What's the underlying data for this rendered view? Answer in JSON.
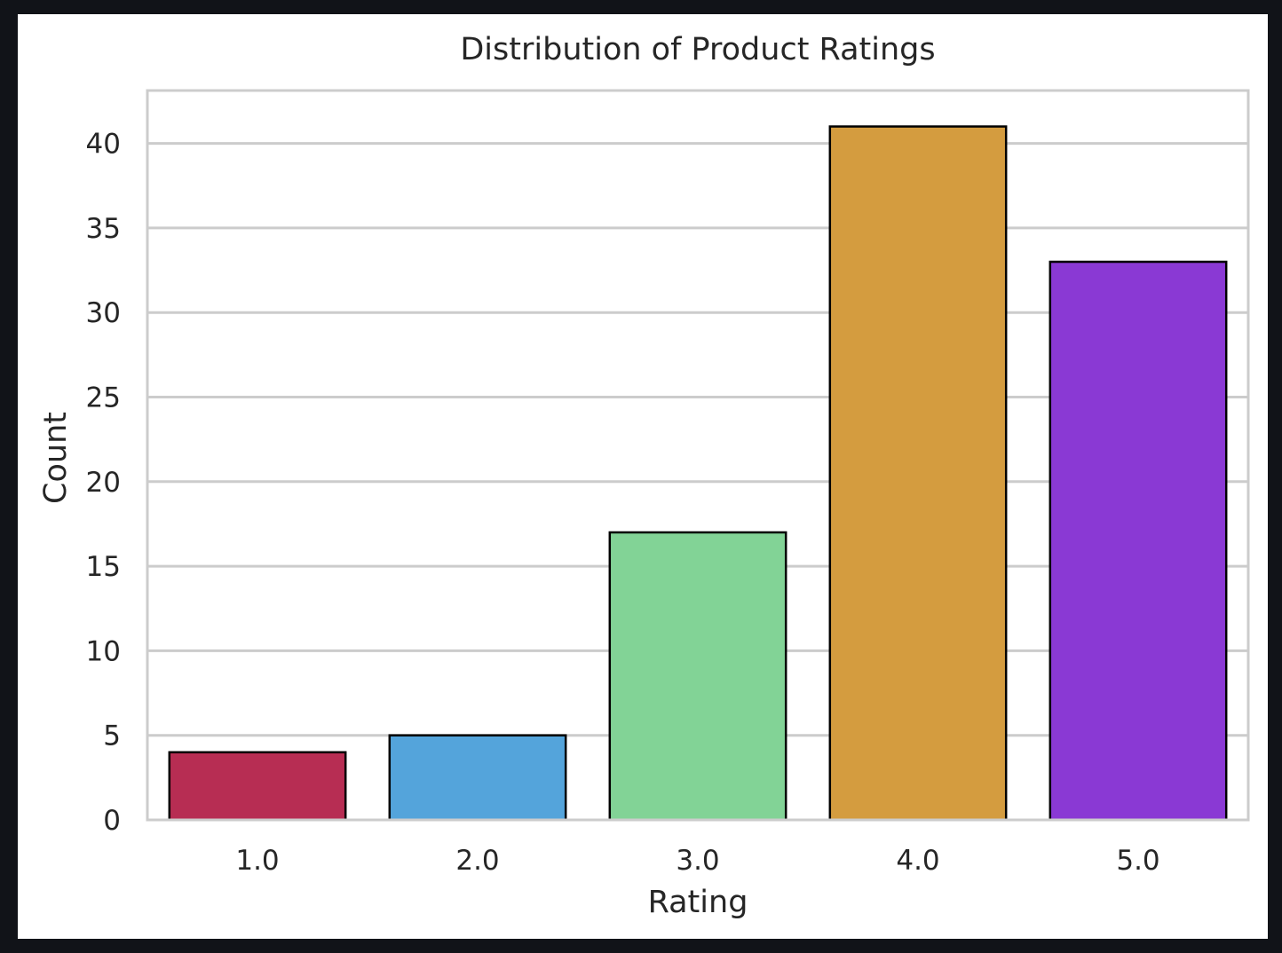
{
  "chart_data": {
    "type": "bar",
    "title": "Distribution of Product Ratings",
    "xlabel": "Rating",
    "ylabel": "Count",
    "categories": [
      "1.0",
      "2.0",
      "3.0",
      "4.0",
      "5.0"
    ],
    "values": [
      4,
      5,
      17,
      41,
      33
    ],
    "colors": [
      "#b72d53",
      "#54a4db",
      "#82d396",
      "#d49c3f",
      "#8a39d4"
    ],
    "yticks": [
      "0",
      "5",
      "10",
      "15",
      "20",
      "25",
      "30",
      "35",
      "40"
    ],
    "ylim": [
      0,
      43
    ],
    "grid": true,
    "legend": "none"
  }
}
